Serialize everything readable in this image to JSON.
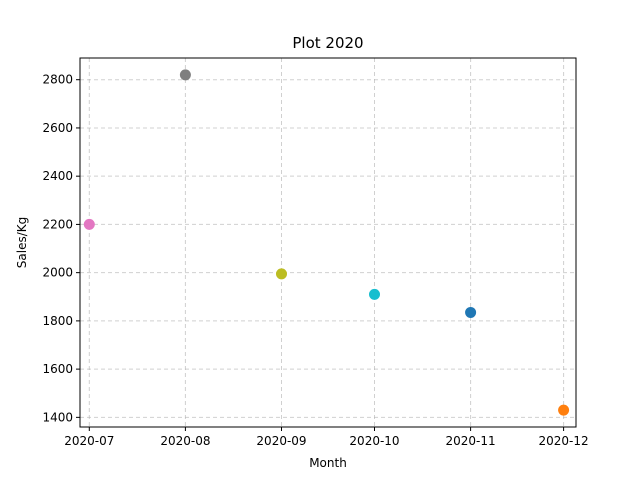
{
  "chart_data": {
    "type": "scatter",
    "title": "Plot 2020",
    "xlabel": "Month",
    "ylabel": "Sales/Kg",
    "x_ticks": [
      "2020-07",
      "2020-08",
      "2020-09",
      "2020-10",
      "2020-11",
      "2020-12"
    ],
    "y_ticks": [
      1400,
      1600,
      1800,
      2000,
      2200,
      2400,
      2600,
      2800
    ],
    "xlim": [
      "2020-06-28",
      "2020-12-05"
    ],
    "ylim": [
      1360,
      2890
    ],
    "grid": true,
    "points": [
      {
        "x": "2020-07-01",
        "y": 2200,
        "color": "#e377c2"
      },
      {
        "x": "2020-08-01",
        "y": 2820,
        "color": "#7f7f7f"
      },
      {
        "x": "2020-09-01",
        "y": 1995,
        "color": "#bcbd22"
      },
      {
        "x": "2020-10-01",
        "y": 1910,
        "color": "#17becf"
      },
      {
        "x": "2020-11-01",
        "y": 1835,
        "color": "#1f77b4"
      },
      {
        "x": "2020-12-01",
        "y": 1430,
        "color": "#ff7f0e"
      }
    ]
  }
}
